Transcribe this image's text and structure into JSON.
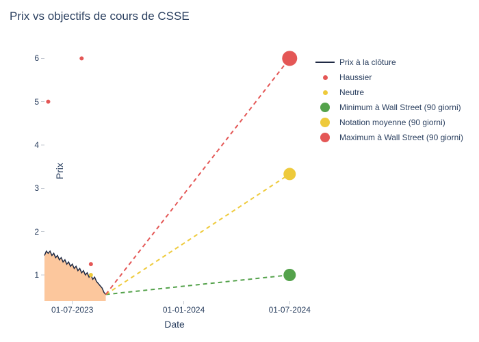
{
  "title": "Prix vs objectifs de cours de CSSE",
  "axes": {
    "xlabel": "Date",
    "ylabel": "Prix",
    "ylim": [
      0.4,
      6.4
    ],
    "yticks": [
      1,
      2,
      3,
      4,
      5,
      6
    ],
    "xlim": [
      0,
      14
    ],
    "xticks": [
      {
        "pos": 1.5,
        "label": "01-07-2023"
      },
      {
        "pos": 7.5,
        "label": "01-01-2024"
      },
      {
        "pos": 13.2,
        "label": "01-07-2024"
      }
    ],
    "tick_fontsize": 12,
    "label_fontsize": 14,
    "title_fontsize": 17,
    "background_color": "#ffffff",
    "text_color": "#2a3f5f"
  },
  "series": {
    "close_price": {
      "label": "Prix à la clôture",
      "type": "line-area",
      "line_color": "#1f2a44",
      "line_width": 1.5,
      "area_color": "#fbbd8c",
      "area_opacity": 0.85,
      "points": [
        [
          0.0,
          1.45
        ],
        [
          0.1,
          1.55
        ],
        [
          0.2,
          1.5
        ],
        [
          0.3,
          1.55
        ],
        [
          0.4,
          1.45
        ],
        [
          0.5,
          1.5
        ],
        [
          0.6,
          1.4
        ],
        [
          0.7,
          1.45
        ],
        [
          0.8,
          1.35
        ],
        [
          0.9,
          1.4
        ],
        [
          1.0,
          1.3
        ],
        [
          1.1,
          1.35
        ],
        [
          1.2,
          1.25
        ],
        [
          1.3,
          1.3
        ],
        [
          1.4,
          1.2
        ],
        [
          1.5,
          1.25
        ],
        [
          1.6,
          1.15
        ],
        [
          1.7,
          1.2
        ],
        [
          1.8,
          1.1
        ],
        [
          1.9,
          1.15
        ],
        [
          2.0,
          1.05
        ],
        [
          2.1,
          1.1
        ],
        [
          2.2,
          1.0
        ],
        [
          2.3,
          1.05
        ],
        [
          2.4,
          0.95
        ],
        [
          2.5,
          1.0
        ],
        [
          2.6,
          0.9
        ],
        [
          2.7,
          0.95
        ],
        [
          2.8,
          0.85
        ],
        [
          2.9,
          0.8
        ],
        [
          3.0,
          0.75
        ],
        [
          3.1,
          0.7
        ],
        [
          3.2,
          0.6
        ],
        [
          3.3,
          0.55
        ]
      ]
    },
    "haussier": {
      "label": "Haussier",
      "type": "scatter",
      "color": "#e45756",
      "marker_size": 6,
      "points": [
        [
          0.2,
          5.0
        ],
        [
          2.0,
          6.0
        ],
        [
          2.5,
          1.25
        ]
      ]
    },
    "neutre": {
      "label": "Neutre",
      "type": "scatter",
      "color": "#eeca3b",
      "marker_size": 6,
      "points": [
        [
          2.5,
          1.0
        ]
      ]
    },
    "min90": {
      "label": "Minimum à Wall Street (90 giorni)",
      "type": "target",
      "color": "#54a24b",
      "marker_size": 18,
      "line_dash": [
        6,
        5
      ],
      "line_width": 2,
      "from": [
        3.3,
        0.55
      ],
      "to": [
        13.2,
        1.0
      ]
    },
    "avg90": {
      "label": "Notation moyenne (90 giorni)",
      "type": "target",
      "color": "#eeca3b",
      "marker_size": 18,
      "line_dash": [
        6,
        5
      ],
      "line_width": 2,
      "from": [
        3.3,
        0.55
      ],
      "to": [
        13.2,
        3.33
      ]
    },
    "max90": {
      "label": "Maximum à Wall Street (90 giorni)",
      "type": "target",
      "color": "#e45756",
      "marker_size": 22,
      "line_dash": [
        6,
        5
      ],
      "line_width": 2,
      "from": [
        3.3,
        0.55
      ],
      "to": [
        13.2,
        6.0
      ]
    }
  },
  "legend_order": [
    "close_price",
    "haussier",
    "neutre",
    "min90",
    "avg90",
    "max90"
  ]
}
